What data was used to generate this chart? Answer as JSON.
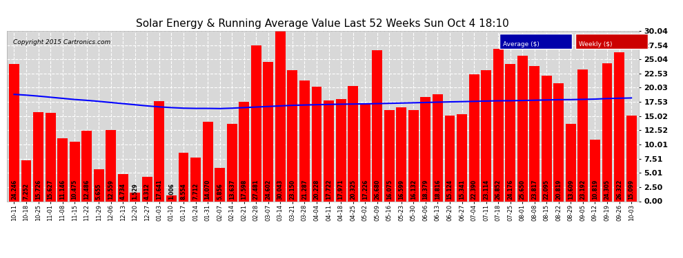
{
  "title": "Solar Energy & Running Average Value Last 52 Weeks Sun Oct 4 18:10",
  "copyright": "Copyright 2015 Cartronics.com",
  "bar_color": "#ff0000",
  "avg_line_color": "#0000ff",
  "background_color": "#ffffff",
  "plot_bg_color": "#d8d8d8",
  "grid_color": "#ffffff",
  "ylim": [
    0.0,
    30.04
  ],
  "yticks": [
    0.0,
    2.5,
    5.01,
    7.51,
    10.01,
    12.52,
    15.02,
    17.53,
    20.03,
    22.53,
    25.04,
    27.54,
    30.04
  ],
  "categories": [
    "10-11",
    "10-18",
    "10-25",
    "11-01",
    "11-08",
    "11-15",
    "11-22",
    "11-29",
    "12-06",
    "12-13",
    "12-20",
    "12-27",
    "01-03",
    "01-10",
    "01-17",
    "01-24",
    "01-31",
    "02-07",
    "02-14",
    "02-21",
    "02-28",
    "03-07",
    "03-14",
    "03-21",
    "03-28",
    "04-04",
    "04-11",
    "04-18",
    "04-25",
    "05-02",
    "05-09",
    "05-16",
    "05-23",
    "05-30",
    "06-06",
    "06-13",
    "06-20",
    "06-27",
    "07-04",
    "07-11",
    "07-18",
    "07-25",
    "08-01",
    "08-08",
    "08-15",
    "08-22",
    "08-29",
    "09-05",
    "09-12",
    "09-19",
    "09-26",
    "10-03"
  ],
  "weekly_values": [
    24.246,
    7.252,
    15.726,
    15.627,
    11.146,
    10.475,
    12.486,
    5.655,
    12.559,
    4.734,
    1.529,
    4.312,
    17.641,
    1.006,
    8.554,
    7.712,
    14.07,
    5.856,
    13.637,
    17.598,
    27.481,
    24.602,
    30.043,
    23.15,
    21.287,
    20.228,
    17.722,
    17.971,
    20.325,
    17.226,
    26.68,
    16.075,
    16.599,
    16.132,
    18.379,
    18.816,
    15.124,
    15.341,
    22.39,
    23.114,
    26.852,
    24.176,
    25.65,
    23.817,
    22.095,
    20.819,
    13.609,
    23.192,
    10.819,
    24.305,
    26.322,
    15.099
  ],
  "avg_values": [
    18.85,
    18.72,
    18.55,
    18.35,
    18.15,
    17.95,
    17.8,
    17.62,
    17.42,
    17.22,
    17.02,
    16.82,
    16.65,
    16.52,
    16.42,
    16.38,
    16.38,
    16.35,
    16.42,
    16.52,
    16.62,
    16.72,
    16.82,
    16.92,
    16.98,
    17.03,
    17.08,
    17.12,
    17.15,
    17.18,
    17.22,
    17.27,
    17.32,
    17.37,
    17.42,
    17.48,
    17.53,
    17.57,
    17.62,
    17.67,
    17.72,
    17.73,
    17.77,
    17.82,
    17.87,
    17.92,
    17.93,
    17.97,
    18.02,
    18.12,
    18.17,
    18.22
  ],
  "legend_avg_bg": "#0000aa",
  "legend_weekly_bg": "#cc0000",
  "title_fontsize": 11,
  "ylabel_fontsize": 8,
  "xlabel_fontsize": 6,
  "value_label_fontsize": 5.5
}
